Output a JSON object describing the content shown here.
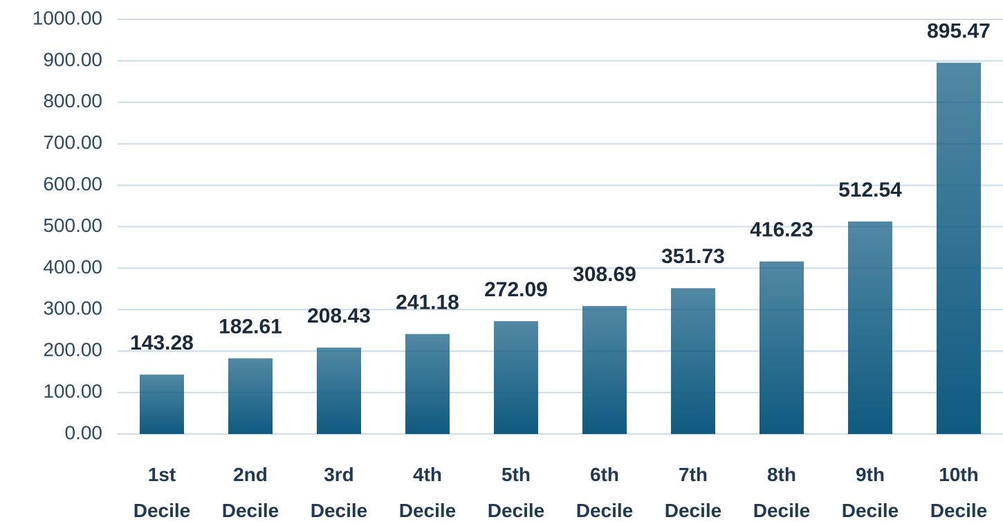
{
  "chart_data": {
    "type": "bar",
    "categories": [
      "1st Decile",
      "2nd Decile",
      "3rd Decile",
      "4th Decile",
      "5th Decile",
      "6th Decile",
      "7th Decile",
      "8th Decile",
      "9th Decile",
      "10th Decile"
    ],
    "values": [
      143.28,
      182.61,
      208.43,
      241.18,
      272.09,
      308.69,
      351.73,
      416.23,
      512.54,
      895.47
    ],
    "color": "#0f5a80",
    "ylim": [
      0,
      1000
    ],
    "yticks": [
      {
        "value": 0,
        "label": "0.00"
      },
      {
        "value": 100,
        "label": "100.00"
      },
      {
        "value": 200,
        "label": "200.00"
      },
      {
        "value": 300,
        "label": "300.00"
      },
      {
        "value": 400,
        "label": "400.00"
      },
      {
        "value": 500,
        "label": "500.00"
      },
      {
        "value": 600,
        "label": "600.00"
      },
      {
        "value": 700,
        "label": "700.00"
      },
      {
        "value": 800,
        "label": "800.00"
      },
      {
        "value": 900,
        "label": "900.00"
      },
      {
        "value": 1000,
        "label": "1000.00"
      }
    ],
    "grid": true
  }
}
